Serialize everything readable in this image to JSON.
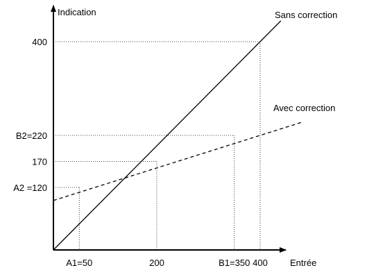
{
  "chart_data": {
    "type": "line",
    "xlabel": "Entrée",
    "ylabel": "Indication",
    "xlim": [
      0,
      440
    ],
    "ylim": [
      0,
      440
    ],
    "series": [
      {
        "name": "Sans correction",
        "style": "solid",
        "color": "#000000",
        "x": [
          0,
          440
        ],
        "y": [
          0,
          440
        ]
      },
      {
        "name": "Avec correction",
        "style": "dashed",
        "color": "#000000",
        "x": [
          0,
          480
        ],
        "y": [
          95,
          245
        ]
      }
    ],
    "x_ticks": [
      {
        "value": 50,
        "label": "A1=50"
      },
      {
        "value": 200,
        "label": "200"
      },
      {
        "value": 350,
        "label": "B1=350"
      },
      {
        "value": 400,
        "label": "400"
      }
    ],
    "y_ticks": [
      {
        "value": 120,
        "label": "A2 =120"
      },
      {
        "value": 170,
        "label": "170"
      },
      {
        "value": 220,
        "label": "B2=220"
      },
      {
        "value": 400,
        "label": "400"
      }
    ],
    "guides": [
      {
        "x": 50,
        "y": 120
      },
      {
        "x": 200,
        "y": 170
      },
      {
        "x": 350,
        "y": 220
      },
      {
        "x": 400,
        "y": 400
      }
    ],
    "grid": false,
    "legend": "inline-labels"
  }
}
